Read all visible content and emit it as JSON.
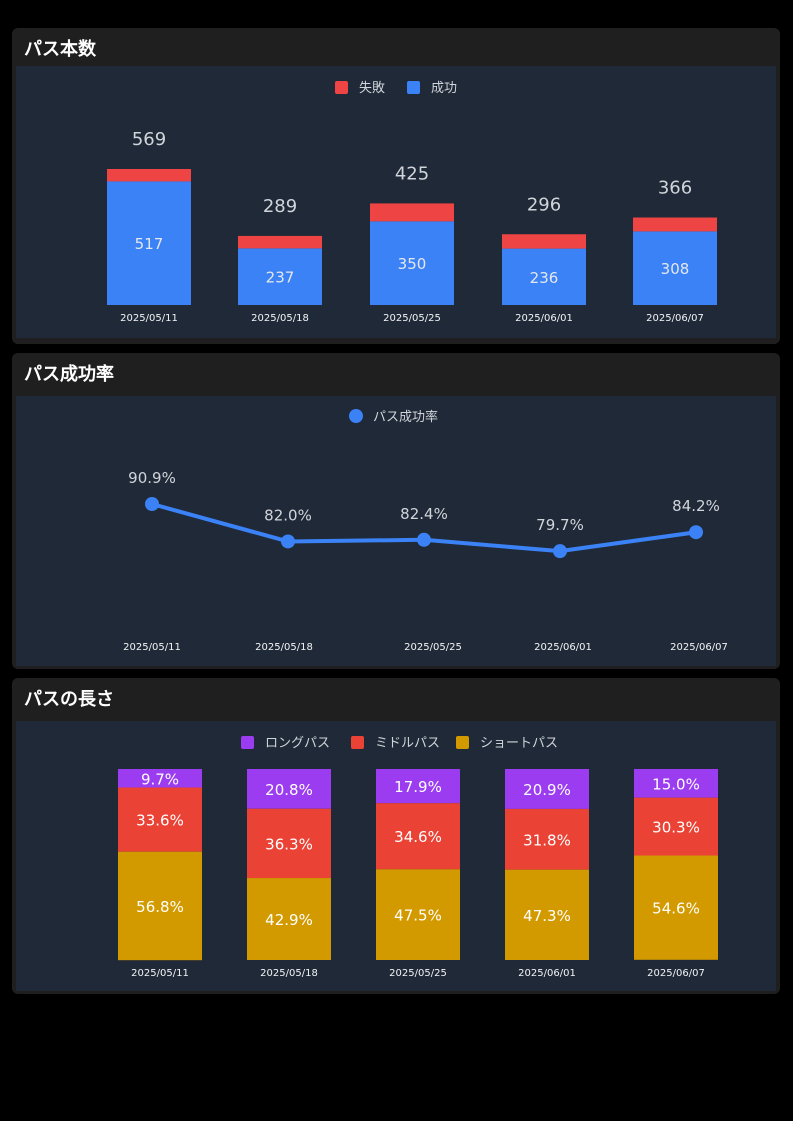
{
  "colors": {
    "fail": "#ef4444",
    "success": "#3b82f6",
    "line": "#3b82f6",
    "long": "#9b3cf0",
    "mid": "#ea4335",
    "short": "#d39a00"
  },
  "chart_data": [
    {
      "type": "bar",
      "stacked": true,
      "title": "パス本数",
      "categories": [
        "2025/05/11",
        "2025/05/18",
        "2025/05/25",
        "2025/06/01",
        "2025/06/07"
      ],
      "series": [
        {
          "name": "失敗",
          "values": [
            52,
            52,
            75,
            60,
            58
          ]
        },
        {
          "name": "成功",
          "values": [
            517,
            237,
            350,
            236,
            308
          ]
        }
      ],
      "totals": [
        569,
        289,
        425,
        296,
        366
      ],
      "legend": [
        "失敗",
        "成功"
      ],
      "legend_position": "top",
      "ylim": [
        0,
        569
      ]
    },
    {
      "type": "line",
      "title": "パス成功率",
      "categories": [
        "2025/05/11",
        "2025/05/18",
        "2025/05/25",
        "2025/06/01",
        "2025/06/07"
      ],
      "series": [
        {
          "name": "パス成功率",
          "values": [
            90.9,
            82.0,
            82.4,
            79.7,
            84.2
          ]
        }
      ],
      "labels": [
        "90.9%",
        "82.0%",
        "82.4%",
        "79.7%",
        "84.2%"
      ],
      "legend_position": "top",
      "ylim": [
        70,
        95
      ]
    },
    {
      "type": "bar",
      "stacked": true,
      "percent": true,
      "title": "パスの長さ",
      "categories": [
        "2025/05/11",
        "2025/05/18",
        "2025/05/25",
        "2025/06/01",
        "2025/06/07"
      ],
      "series": [
        {
          "name": "ロングパス",
          "values": [
            9.7,
            20.8,
            17.9,
            20.9,
            15.0
          ],
          "labels": [
            "9.7%",
            "20.8%",
            "17.9%",
            "20.9%",
            "15.0%"
          ]
        },
        {
          "name": "ミドルパス",
          "values": [
            33.6,
            36.3,
            34.6,
            31.8,
            30.3
          ],
          "labels": [
            "33.6%",
            "36.3%",
            "34.6%",
            "31.8%",
            "30.3%"
          ]
        },
        {
          "name": "ショートパス",
          "values": [
            56.8,
            42.9,
            47.5,
            47.3,
            54.6
          ],
          "labels": [
            "56.8%",
            "42.9%",
            "47.5%",
            "47.3%",
            "54.6%"
          ]
        }
      ],
      "legend_position": "top",
      "ylim": [
        0,
        100
      ]
    }
  ]
}
